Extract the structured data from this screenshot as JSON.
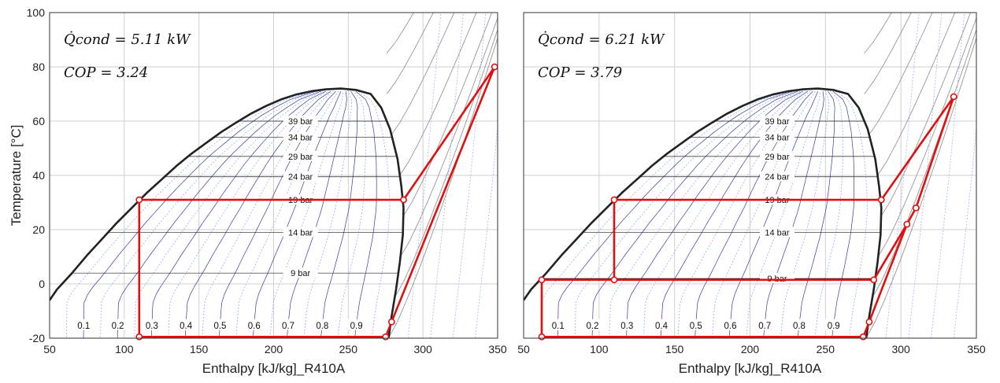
{
  "chart_data": [
    {
      "type": "line",
      "title": "",
      "xlabel": "Enthalpy [kJ/kg]_R410A",
      "ylabel": "Temperature [°C]",
      "xlim": [
        50,
        350
      ],
      "ylim": [
        -20,
        100
      ],
      "xticks": [
        50,
        100,
        150,
        200,
        250,
        300,
        350
      ],
      "yticks": [
        -20,
        0,
        20,
        40,
        60,
        80,
        100
      ],
      "grid": true,
      "annotations": {
        "q_cond": "Q̇cond = 5.11 kW",
        "cop": "COP = 3.24"
      },
      "isobar_labels": [
        {
          "label": "39 bar",
          "T": 60
        },
        {
          "label": "34 bar",
          "T": 54
        },
        {
          "label": "29 bar",
          "T": 47
        },
        {
          "label": "24 bar",
          "T": 39.5
        },
        {
          "label": "19 bar",
          "T": 31
        },
        {
          "label": "14 bar",
          "T": 19
        },
        {
          "label": "9 bar",
          "T": 4
        }
      ],
      "quality_labels": [
        "0.1",
        "0.2",
        "0.3",
        "0.4",
        "0.5",
        "0.6",
        "0.7",
        "0.8",
        "0.9"
      ],
      "series": [
        {
          "values": [
            {
              "x": 110,
              "y": -19.5
            },
            {
              "x": 110,
              "y": 31
            },
            {
              "x": 287,
              "y": 31
            },
            {
              "x": 348,
              "y": 80
            },
            {
              "x": 279,
              "y": -14
            },
            {
              "x": 275,
              "y": -19.5
            },
            {
              "x": 110,
              "y": -19.5
            }
          ],
          "markers": [
            {
              "x": 110,
              "y": 31
            },
            {
              "x": 287,
              "y": 31
            },
            {
              "x": 348,
              "y": 80
            },
            {
              "x": 279,
              "y": -14
            },
            {
              "x": 275,
              "y": -19.5
            },
            {
              "x": 110,
              "y": -19.5
            }
          ]
        }
      ]
    },
    {
      "type": "line",
      "title": "",
      "xlabel": "Enthalpy [kJ/kg]_R410A",
      "ylabel": "",
      "xlim": [
        50,
        350
      ],
      "ylim": [
        -20,
        100
      ],
      "xticks": [
        50,
        100,
        150,
        200,
        250,
        300,
        350
      ],
      "yticks": [
        -20,
        0,
        20,
        40,
        60,
        80,
        100
      ],
      "grid": true,
      "annotations": {
        "q_cond": "Q̇cond = 6.21 kW",
        "cop": "COP = 3.79"
      },
      "isobar_labels": [
        {
          "label": "39 bar",
          "T": 60
        },
        {
          "label": "34 bar",
          "T": 54
        },
        {
          "label": "29 bar",
          "T": 47
        },
        {
          "label": "24 bar",
          "T": 39.5
        },
        {
          "label": "19 bar",
          "T": 31
        },
        {
          "label": "14 bar",
          "T": 19
        },
        {
          "label": "9 bar",
          "T": 2
        }
      ],
      "quality_labels": [
        "0.1",
        "0.2",
        "0.3",
        "0.4",
        "0.5",
        "0.6",
        "0.7",
        "0.8",
        "0.9"
      ],
      "series": [
        {
          "values": [
            {
              "x": 62,
              "y": -19.5
            },
            {
              "x": 62,
              "y": 1.5
            },
            {
              "x": 282,
              "y": 1.5
            },
            {
              "x": 304,
              "y": 22
            },
            {
              "x": 310,
              "y": 28
            },
            {
              "x": 335,
              "y": 69
            },
            {
              "x": 287,
              "y": 31
            },
            {
              "x": 110,
              "y": 31
            },
            {
              "x": 110,
              "y": 1.5
            }
          ],
          "lower_path": [
            {
              "x": 62,
              "y": -19.5
            },
            {
              "x": 275,
              "y": -19.5
            },
            {
              "x": 279,
              "y": -14
            },
            {
              "x": 304,
              "y": 22
            }
          ],
          "markers": [
            {
              "x": 110,
              "y": 31
            },
            {
              "x": 287,
              "y": 31
            },
            {
              "x": 335,
              "y": 69
            },
            {
              "x": 304,
              "y": 22
            },
            {
              "x": 310,
              "y": 28
            },
            {
              "x": 282,
              "y": 1.5
            },
            {
              "x": 110,
              "y": 1.5
            },
            {
              "x": 62,
              "y": 1.5
            },
            {
              "x": 279,
              "y": -14
            },
            {
              "x": 275,
              "y": -19.5
            },
            {
              "x": 62,
              "y": -19.5
            }
          ]
        }
      ]
    }
  ]
}
